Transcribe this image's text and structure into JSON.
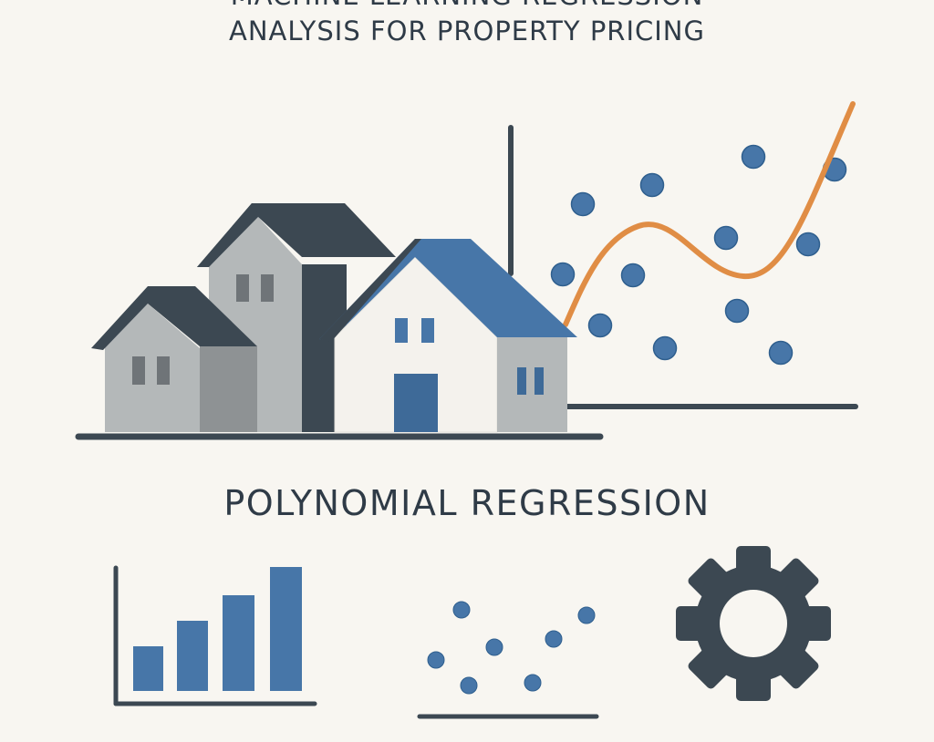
{
  "title": {
    "line1": "MACHINE LEARNING REGRESSION",
    "line2": "ANALYSIS FOR PROPERTY PRICING"
  },
  "subtitle": "POLYNOMIAL REGRESSION",
  "colors": {
    "background": "#f8f6f1",
    "dark_slate": "#3c4852",
    "blue": "#4776a8",
    "gray_light": "#b4b8b9",
    "gray_mid": "#8e9294",
    "orange": "#e08d45"
  },
  "icons": [
    "house-icon",
    "bar-chart-icon",
    "scatter-plot-icon",
    "gear-icon"
  ]
}
